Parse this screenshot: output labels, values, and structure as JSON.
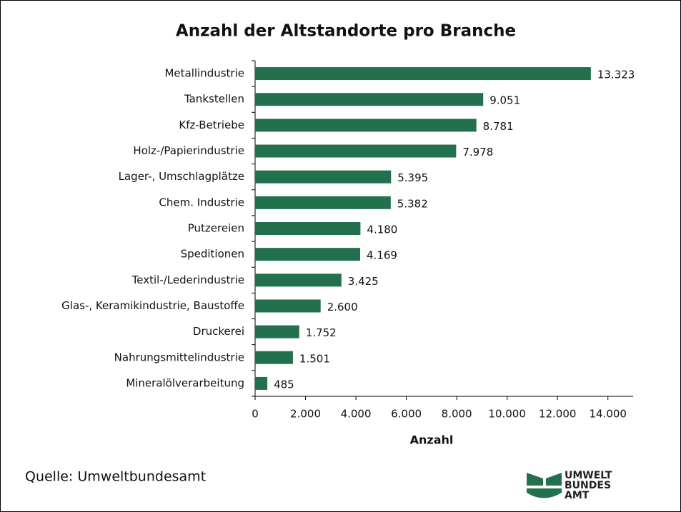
{
  "chart_data": {
    "type": "barh",
    "title": "Anzahl der Altstandorte pro Branche",
    "categories": [
      "Metallindustrie",
      "Tankstellen",
      "Kfz-Betriebe",
      "Holz-/Papierindustrie",
      "Lager-, Umschlagplätze",
      "Chem. Industrie",
      "Putzereien",
      "Speditionen",
      "Textil-/Lederindustrie",
      "Glas-, Keramikindustrie, Baustoffe",
      "Druckerei",
      "Nahrungsmittelindustrie",
      "Mineralölverarbeitung"
    ],
    "values": [
      13323,
      9051,
      8781,
      7978,
      5395,
      5382,
      4180,
      4169,
      3425,
      2600,
      1752,
      1501,
      485
    ],
    "value_labels": [
      "13.323",
      "9.051",
      "8.781",
      "7.978",
      "5.395",
      "5.382",
      "4.180",
      "4.169",
      "3.425",
      "2.600",
      "1.752",
      "1.501",
      "485"
    ],
    "color": "#23704f",
    "xlabel": "Anzahl",
    "xlim": [
      0,
      15000
    ],
    "xticks": [
      0,
      {
        "value": 2000,
        "label": "2.000"
      },
      {
        "value": 4000,
        "label": "4.000"
      },
      {
        "value": 6000,
        "label": "6.000"
      },
      {
        "value": 8000,
        "label": "8.000"
      },
      {
        "value": 10000,
        "label": "10.000"
      },
      {
        "value": 12000,
        "label": "12.000"
      },
      {
        "value": 14000,
        "label": "14.000"
      }
    ],
    "source": "Quelle:  Umweltbundesamt",
    "logo_text": [
      "UMWELT",
      "BUNDES",
      "AMT"
    ]
  }
}
